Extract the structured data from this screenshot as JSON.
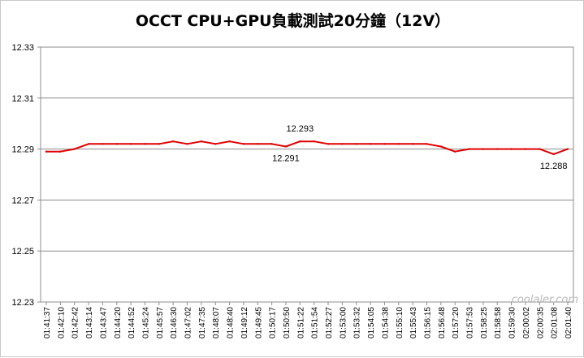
{
  "chart_data": {
    "type": "line",
    "title": "OCCT CPU+GPU負載測試20分鐘（12V）",
    "xlabel": "",
    "ylabel": "",
    "ylim": [
      12.23,
      12.33
    ],
    "yticks": [
      "12.33",
      "12.31",
      "12.29",
      "12.27",
      "12.25",
      "12.23"
    ],
    "grid": "horizontal",
    "line_color": "#e00000",
    "categories": [
      "01:41:37",
      "01:42:10",
      "01:42:42",
      "01:43:14",
      "01:43:47",
      "01:44:20",
      "01:44:52",
      "01:45:24",
      "01:45:57",
      "01:46:30",
      "01:47:02",
      "01:47:35",
      "01:48:07",
      "01:48:40",
      "01:49:12",
      "01:49:45",
      "01:50:17",
      "01:50:50",
      "01:51:22",
      "01:51:54",
      "01:52:27",
      "01:53:00",
      "01:53:32",
      "01:54:05",
      "01:54:38",
      "01:55:10",
      "01:55:43",
      "01:56:15",
      "01:56:48",
      "01:57:20",
      "01:57:53",
      "01:58:25",
      "01:58:58",
      "01:59:30",
      "02:00:02",
      "02:00:35",
      "02:01:08",
      "02:01:40"
    ],
    "series": [
      {
        "values": [
          12.289,
          12.289,
          12.29,
          12.292,
          12.292,
          12.292,
          12.292,
          12.292,
          12.292,
          12.293,
          12.292,
          12.293,
          12.292,
          12.293,
          12.292,
          12.292,
          12.292,
          12.291,
          12.293,
          12.293,
          12.292,
          12.292,
          12.292,
          12.292,
          12.292,
          12.292,
          12.292,
          12.292,
          12.291,
          12.289,
          12.29,
          12.29,
          12.29,
          12.29,
          12.29,
          12.29,
          12.288,
          12.29
        ]
      }
    ],
    "annotations": [
      {
        "text": "12.293",
        "x": "01:51:22",
        "y": 12.293,
        "placement": "above"
      },
      {
        "text": "12.291",
        "x": "01:50:50",
        "y": 12.291,
        "placement": "below"
      },
      {
        "text": "12.288",
        "x": "02:01:08",
        "y": 12.288,
        "placement": "below"
      }
    ]
  },
  "watermark": "coolaler.com"
}
